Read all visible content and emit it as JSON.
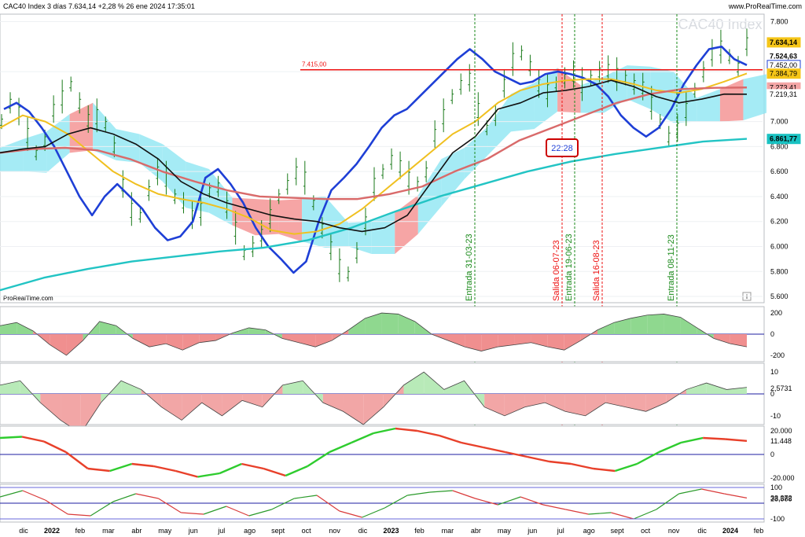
{
  "header": {
    "title": "CAC40 Index 3 días 7.634,14 +2,28 % 26 ene 2024 17:35:01",
    "brand": "www.ProRealTime.com",
    "watermark": "CAC40 Index",
    "brand_small": "ProRealTime.com",
    "info_icon": "i"
  },
  "chart_data": {
    "type": "line",
    "price_axis": {
      "ylim": [
        5550,
        7860
      ],
      "ticks": [
        "7.800",
        "7.400",
        "7.000",
        "6.800",
        "6.600",
        "6.400",
        "6.200",
        "6.000",
        "5.800",
        "5.600"
      ],
      "labels": [
        {
          "text": "7.634,14",
          "value": 7634,
          "color": "#f5c518",
          "bold": true
        },
        {
          "text": "7.524,63",
          "value": 7524,
          "color": "#ffffff",
          "bold": true
        },
        {
          "text": "7.452,00",
          "value": 7452,
          "color": "#ffffff",
          "border": "#1e3fd6",
          "fg": "#1e3fd6"
        },
        {
          "text": "7.384,79",
          "value": 7384,
          "color": "#f5c518"
        },
        {
          "text": "7.273,41",
          "value": 7273,
          "color": "#f4a6a6"
        },
        {
          "text": "7.219,31",
          "value": 7219,
          "color": "#ffffff"
        },
        {
          "text": "6.861,77",
          "value": 6861,
          "color": "#19c2c2",
          "bold": true
        }
      ]
    },
    "x_labels": [
      "dic",
      "2022",
      "feb",
      "mar",
      "abr",
      "may",
      "jun",
      "jul",
      "ago",
      "sept",
      "oct",
      "nov",
      "dic",
      "2023",
      "feb",
      "mar",
      "abr",
      "may",
      "jun",
      "jul",
      "ago",
      "sept",
      "oct",
      "nov",
      "dic",
      "2024",
      "feb"
    ],
    "resistance": {
      "label": "7.415,00",
      "value": 7415
    },
    "events": [
      {
        "label": "Entrada 31-03-23",
        "type": "entry"
      },
      {
        "label": "Salida 06-07-23",
        "type": "exit"
      },
      {
        "label": "Entrada 19-06-23",
        "type": "entry"
      },
      {
        "label": "Salida 16-08-23",
        "type": "exit"
      },
      {
        "label": "Entrada 08-11-23",
        "type": "entry"
      }
    ],
    "note_box": "22:28",
    "series": [
      {
        "name": "Price",
        "color": "#1a7a1a",
        "values": [
          7000,
          7150,
          7080,
          6900,
          6750,
          6850,
          7100,
          7200,
          7300,
          7150,
          7020,
          7050,
          6980,
          6800,
          6500,
          6300,
          6250,
          6450,
          6600,
          6550,
          6400,
          6350,
          6250,
          6300,
          6450,
          6480,
          6330,
          6150,
          5950,
          6000,
          6100,
          6250,
          6400,
          6500,
          6600,
          6550,
          6350,
          6150,
          6000,
          5850,
          5780,
          5950,
          6200,
          6500,
          6600,
          6700,
          6650,
          6550,
          6500,
          6600,
          6900,
          7050,
          7200,
          7300,
          7350,
          7100,
          6950,
          7050,
          7300,
          7500,
          7550,
          7450,
          7300,
          7250,
          7300,
          7350,
          7380,
          7300,
          7350,
          7400,
          7420,
          7380,
          7350,
          7300,
          7280,
          7150,
          7000,
          6880,
          6950,
          7100,
          7250,
          7400,
          7550,
          7600,
          7520,
          7440,
          7634
        ]
      },
      {
        "name": "MA20",
        "color": "#1e3fd6",
        "values": [
          7100,
          7150,
          7080,
          6950,
          6800,
          6600,
          6400,
          6250,
          6400,
          6500,
          6400,
          6300,
          6150,
          6050,
          6080,
          6200,
          6550,
          6620,
          6500,
          6350,
          6150,
          6000,
          5900,
          5790,
          5880,
          6200,
          6450,
          6550,
          6660,
          6800,
          6950,
          7050,
          7100,
          7200,
          7300,
          7400,
          7500,
          7580,
          7500,
          7400,
          7350,
          7300,
          7320,
          7380,
          7400,
          7380,
          7350,
          7300,
          7200,
          7050,
          6950,
          6880,
          6950,
          7100,
          7300,
          7450,
          7580,
          7600,
          7500,
          7452
        ]
      },
      {
        "name": "MA50",
        "color": "#f0c020",
        "values": [
          6950,
          7050,
          7000,
          6900,
          6750,
          6600,
          6500,
          6420,
          6380,
          6350,
          6300,
          6230,
          6130,
          6100,
          6120,
          6180,
          6300,
          6450,
          6600,
          6750,
          6900,
          7000,
          7150,
          7250,
          7300,
          7330,
          7340,
          7340,
          7300,
          7250,
          7230,
          7260,
          7320,
          7385
        ]
      },
      {
        "name": "MA100",
        "color": "#d96a6a",
        "values": [
          6750,
          6780,
          6790,
          6770,
          6700,
          6600,
          6520,
          6450,
          6400,
          6390,
          6380,
          6380,
          6420,
          6480,
          6600,
          6700,
          6850,
          6950,
          7050,
          7150,
          7220,
          7260,
          7270,
          7273
        ]
      },
      {
        "name": "MA200",
        "color": "#22c4c4",
        "values": [
          5650,
          5750,
          5820,
          5880,
          5920,
          5960,
          5990,
          6050,
          6150,
          6280,
          6400,
          6500,
          6600,
          6680,
          6740,
          6790,
          6840,
          6862
        ]
      },
      {
        "name": "Kijun",
        "color": "#111111",
        "values": [
          6750,
          6780,
          6800,
          6900,
          6950,
          6900,
          6820,
          6700,
          6520,
          6420,
          6350,
          6300,
          6250,
          6220,
          6200,
          6150,
          6120,
          6150,
          6250,
          6500,
          6750,
          6880,
          7100,
          7150,
          7230,
          7250,
          7280,
          7330,
          7280,
          7200,
          7150,
          7180,
          7220,
          7219
        ]
      }
    ],
    "oscillators": [
      {
        "name": "osc1",
        "ticks": [
          "200",
          "0",
          "-200"
        ],
        "ylim": [
          -260,
          260
        ],
        "values": [
          80,
          110,
          30,
          -100,
          -200,
          -60,
          120,
          80,
          -40,
          -120,
          -90,
          -150,
          -80,
          -60,
          10,
          60,
          40,
          -40,
          -80,
          -120,
          -60,
          40,
          150,
          200,
          190,
          120,
          0,
          -60,
          -120,
          -160,
          -120,
          -100,
          -80,
          -120,
          -150,
          -60,
          40,
          110,
          150,
          180,
          190,
          160,
          60,
          -40,
          -90,
          -120
        ]
      },
      {
        "name": "osc2",
        "ticks": [
          "10",
          "2,5731",
          "0",
          "-10"
        ],
        "ylim": [
          -14,
          14
        ],
        "values": [
          4,
          6,
          -4,
          -12,
          -18,
          -4,
          6,
          2,
          -6,
          -12,
          -4,
          -10,
          -3,
          -6,
          4,
          6,
          -4,
          -8,
          -14,
          -6,
          4,
          10,
          2,
          6,
          -6,
          -10,
          -6,
          -4,
          -8,
          -10,
          -4,
          -6,
          -8,
          -4,
          2,
          5,
          2,
          3
        ]
      },
      {
        "name": "osc3",
        "ticks": [
          "20.000",
          "11.448",
          "0",
          "-20.000"
        ],
        "ylim": [
          -24000,
          24000
        ],
        "values": [
          14000,
          15000,
          11000,
          2000,
          -12000,
          -14000,
          -8000,
          -10000,
          -14000,
          -19000,
          -16000,
          -8000,
          -12000,
          -18000,
          -10000,
          2000,
          10000,
          18000,
          22000,
          20000,
          16000,
          10000,
          6000,
          2000,
          -2000,
          -6000,
          -8000,
          -12000,
          -14000,
          -8000,
          2000,
          10000,
          14000,
          13000,
          11448
        ]
      },
      {
        "name": "osc4",
        "ticks": [
          "100",
          "33,372",
          "28,588",
          "-100"
        ],
        "ylim": [
          -120,
          120
        ],
        "values": [
          40,
          80,
          20,
          -70,
          -80,
          10,
          60,
          30,
          -60,
          -70,
          -20,
          -80,
          -40,
          30,
          50,
          -50,
          -90,
          -30,
          50,
          70,
          80,
          30,
          -10,
          40,
          -10,
          -40,
          -70,
          -60,
          -100,
          -40,
          60,
          90,
          60,
          33
        ]
      }
    ]
  }
}
